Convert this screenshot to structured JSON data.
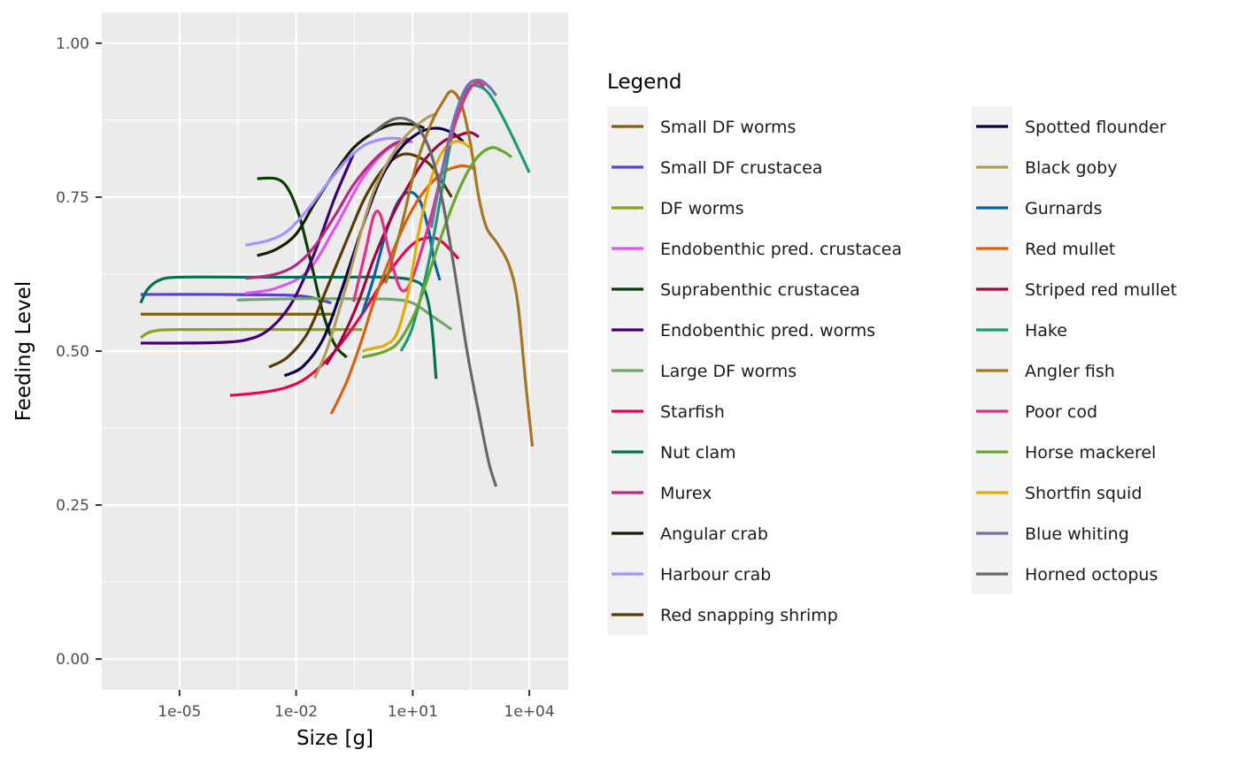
{
  "chart_data": {
    "type": "line",
    "title": "",
    "xlabel": "Size [g]",
    "ylabel": "Feeding Level",
    "x_scale": "log10",
    "xlim": [
      1e-07,
      100000.0
    ],
    "ylim": [
      -0.05,
      1.05
    ],
    "x_ticks": [
      1e-05,
      0.01,
      10,
      10000
    ],
    "x_tick_labels": [
      "1e-05",
      "1e-02",
      "1e+01",
      "1e+04"
    ],
    "y_ticks": [
      0,
      0.25,
      0.5,
      0.75,
      1
    ],
    "y_tick_labels": [
      "0.00",
      "0.25",
      "0.50",
      "0.75",
      "1.00"
    ],
    "grid": true,
    "legend": {
      "title": "Legend",
      "position": "right",
      "columns": 2
    },
    "series": [
      {
        "name": "Small DF worms",
        "color": "#7f5f0a",
        "points": [
          [
            1e-06,
            0.56
          ],
          [
            0.001,
            0.56
          ],
          [
            0.1,
            0.56
          ]
        ]
      },
      {
        "name": "Small DF crustacea",
        "color": "#5e3ddc",
        "points": [
          [
            1e-06,
            0.592
          ],
          [
            0.0001,
            0.592
          ],
          [
            0.005,
            0.591
          ],
          [
            0.02,
            0.588
          ],
          [
            0.05,
            0.582
          ],
          [
            0.08,
            0.578
          ]
        ]
      },
      {
        "name": "DF worms",
        "color": "#86a41a",
        "points": [
          [
            1e-06,
            0.522
          ],
          [
            2e-06,
            0.532
          ],
          [
            1e-05,
            0.535
          ],
          [
            0.01,
            0.535
          ],
          [
            0.5,
            0.535
          ]
        ]
      },
      {
        "name": "Endobenthic pred. crustacea",
        "color": "#e154ed",
        "points": [
          [
            0.0005,
            0.594
          ],
          [
            0.003,
            0.602
          ],
          [
            0.02,
            0.63
          ],
          [
            0.1,
            0.7
          ],
          [
            0.5,
            0.78
          ],
          [
            2,
            0.825
          ],
          [
            5,
            0.838
          ],
          [
            10,
            0.84
          ]
        ]
      },
      {
        "name": "Suprabenthic crustacea",
        "color": "#0a3d06",
        "points": [
          [
            0.001,
            0.78
          ],
          [
            0.003,
            0.78
          ],
          [
            0.006,
            0.765
          ],
          [
            0.012,
            0.72
          ],
          [
            0.025,
            0.64
          ],
          [
            0.05,
            0.56
          ],
          [
            0.1,
            0.51
          ],
          [
            0.2,
            0.49
          ]
        ]
      },
      {
        "name": "Endobenthic pred. worms",
        "color": "#420072",
        "points": [
          [
            1e-06,
            0.513
          ],
          [
            1e-05,
            0.513
          ],
          [
            0.0001,
            0.514
          ],
          [
            0.0005,
            0.518
          ],
          [
            0.002,
            0.535
          ],
          [
            0.008,
            0.58
          ],
          [
            0.03,
            0.66
          ],
          [
            0.1,
            0.75
          ],
          [
            0.3,
            0.82
          ]
        ]
      },
      {
        "name": "Large DF worms",
        "color": "#6da86d",
        "points": [
          [
            0.0003,
            0.583
          ],
          [
            0.01,
            0.585
          ],
          [
            0.3,
            0.585
          ],
          [
            3,
            0.584
          ],
          [
            10,
            0.578
          ],
          [
            30,
            0.558
          ],
          [
            100,
            0.535
          ]
        ]
      },
      {
        "name": "Starfish",
        "color": "#e5064b",
        "points": [
          [
            0.0002,
            0.428
          ],
          [
            0.001,
            0.432
          ],
          [
            0.005,
            0.44
          ],
          [
            0.02,
            0.458
          ],
          [
            0.1,
            0.5
          ],
          [
            0.5,
            0.56
          ],
          [
            2,
            0.62
          ],
          [
            8,
            0.668
          ],
          [
            20,
            0.683
          ],
          [
            50,
            0.68
          ],
          [
            150,
            0.65
          ]
        ]
      },
      {
        "name": "Nut clam",
        "color": "#007153",
        "points": [
          [
            1e-06,
            0.578
          ],
          [
            1.5e-06,
            0.6
          ],
          [
            3e-06,
            0.615
          ],
          [
            1e-05,
            0.62
          ],
          [
            0.001,
            0.62
          ],
          [
            0.1,
            0.62
          ],
          [
            2,
            0.62
          ],
          [
            10,
            0.615
          ],
          [
            20,
            0.6
          ],
          [
            30,
            0.55
          ],
          [
            40,
            0.455
          ]
        ]
      },
      {
        "name": "Murex",
        "color": "#b72b7e",
        "points": [
          [
            0.0005,
            0.618
          ],
          [
            0.003,
            0.625
          ],
          [
            0.01,
            0.64
          ],
          [
            0.03,
            0.67
          ],
          [
            0.1,
            0.72
          ],
          [
            0.3,
            0.77
          ],
          [
            1,
            0.81
          ],
          [
            3,
            0.835
          ],
          [
            8,
            0.845
          ]
        ]
      },
      {
        "name": "Angular crab",
        "color": "#121f02",
        "points": [
          [
            0.001,
            0.655
          ],
          [
            0.003,
            0.665
          ],
          [
            0.01,
            0.69
          ],
          [
            0.03,
            0.74
          ],
          [
            0.1,
            0.79
          ],
          [
            0.3,
            0.83
          ],
          [
            1,
            0.855
          ],
          [
            3,
            0.868
          ],
          [
            10,
            0.868
          ],
          [
            20,
            0.862
          ]
        ]
      },
      {
        "name": "Harbour crab",
        "color": "#a491fe",
        "points": [
          [
            0.0005,
            0.672
          ],
          [
            0.002,
            0.68
          ],
          [
            0.006,
            0.695
          ],
          [
            0.02,
            0.73
          ],
          [
            0.06,
            0.77
          ],
          [
            0.2,
            0.81
          ],
          [
            0.6,
            0.835
          ],
          [
            2,
            0.845
          ],
          [
            5,
            0.845
          ]
        ]
      },
      {
        "name": "Red snapping shrimp",
        "color": "#563b04",
        "points": [
          [
            0.002,
            0.474
          ],
          [
            0.006,
            0.49
          ],
          [
            0.02,
            0.53
          ],
          [
            0.06,
            0.6
          ],
          [
            0.2,
            0.68
          ],
          [
            0.6,
            0.75
          ],
          [
            2,
            0.8
          ],
          [
            6,
            0.82
          ],
          [
            20,
            0.81
          ],
          [
            40,
            0.79
          ],
          [
            100,
            0.75
          ]
        ]
      },
      {
        "name": "Spotted flounder",
        "color": "#070044",
        "points": [
          [
            0.005,
            0.46
          ],
          [
            0.015,
            0.475
          ],
          [
            0.05,
            0.52
          ],
          [
            0.15,
            0.6
          ],
          [
            0.5,
            0.7
          ],
          [
            1.5,
            0.78
          ],
          [
            5,
            0.83
          ],
          [
            15,
            0.855
          ],
          [
            40,
            0.862
          ],
          [
            100,
            0.855
          ],
          [
            200,
            0.84
          ]
        ]
      },
      {
        "name": "Black goby",
        "color": "#b39b5b",
        "points": [
          [
            0.03,
            0.456
          ],
          [
            0.06,
            0.5
          ],
          [
            0.12,
            0.56
          ],
          [
            0.25,
            0.63
          ],
          [
            0.5,
            0.7
          ],
          [
            1,
            0.76
          ],
          [
            2,
            0.8
          ],
          [
            5,
            0.84
          ],
          [
            12,
            0.865
          ],
          [
            25,
            0.88
          ],
          [
            40,
            0.885
          ]
        ]
      },
      {
        "name": "Gurnards",
        "color": "#0164a5",
        "points": [
          [
            0.5,
            0.56
          ],
          [
            1,
            0.62
          ],
          [
            2,
            0.69
          ],
          [
            4,
            0.74
          ],
          [
            8,
            0.758
          ],
          [
            15,
            0.745
          ],
          [
            25,
            0.7
          ],
          [
            35,
            0.65
          ],
          [
            50,
            0.615
          ]
        ]
      },
      {
        "name": "Red mullet",
        "color": "#da600c",
        "points": [
          [
            0.08,
            0.398
          ],
          [
            0.2,
            0.45
          ],
          [
            0.5,
            0.52
          ],
          [
            1,
            0.58
          ],
          [
            3,
            0.66
          ],
          [
            8,
            0.72
          ],
          [
            20,
            0.76
          ],
          [
            60,
            0.79
          ],
          [
            150,
            0.8
          ],
          [
            250,
            0.8
          ],
          [
            400,
            0.795
          ]
        ]
      },
      {
        "name": "Striped red mullet",
        "color": "#a1053e",
        "points": [
          [
            0.06,
            0.478
          ],
          [
            0.15,
            0.52
          ],
          [
            0.4,
            0.58
          ],
          [
            1,
            0.65
          ],
          [
            3,
            0.72
          ],
          [
            8,
            0.77
          ],
          [
            20,
            0.81
          ],
          [
            60,
            0.84
          ],
          [
            150,
            0.85
          ],
          [
            300,
            0.855
          ],
          [
            500,
            0.848
          ]
        ]
      },
      {
        "name": "Hake",
        "color": "#1e9a79",
        "points": [
          [
            5,
            0.5
          ],
          [
            10,
            0.54
          ],
          [
            25,
            0.64
          ],
          [
            60,
            0.77
          ],
          [
            120,
            0.87
          ],
          [
            250,
            0.925
          ],
          [
            500,
            0.93
          ],
          [
            1000,
            0.915
          ],
          [
            2500,
            0.87
          ],
          [
            6000,
            0.82
          ],
          [
            10000,
            0.79
          ]
        ]
      },
      {
        "name": "Angler fish",
        "color": "#a77421",
        "points": [
          [
            2,
            0.61
          ],
          [
            5,
            0.7
          ],
          [
            12,
            0.8
          ],
          [
            30,
            0.87
          ],
          [
            60,
            0.905
          ],
          [
            100,
            0.922
          ],
          [
            180,
            0.9
          ],
          [
            300,
            0.84
          ],
          [
            500,
            0.75
          ],
          [
            800,
            0.7
          ],
          [
            1500,
            0.675
          ],
          [
            3000,
            0.64
          ],
          [
            5000,
            0.58
          ],
          [
            8000,
            0.45
          ],
          [
            12000,
            0.345
          ]
        ]
      },
      {
        "name": "Poor cod",
        "color": "#e1317f",
        "points": [
          [
            0.3,
            0.58
          ],
          [
            0.6,
            0.66
          ],
          [
            1,
            0.72
          ],
          [
            1.5,
            0.72
          ],
          [
            2.5,
            0.66
          ],
          [
            5,
            0.6
          ],
          [
            10,
            0.62
          ],
          [
            30,
            0.72
          ],
          [
            80,
            0.83
          ],
          [
            200,
            0.905
          ],
          [
            400,
            0.935
          ],
          [
            700,
            0.93
          ]
        ]
      },
      {
        "name": "Horse mackerel",
        "color": "#6aa62a",
        "points": [
          [
            0.5,
            0.49
          ],
          [
            2,
            0.5
          ],
          [
            5,
            0.52
          ],
          [
            15,
            0.58
          ],
          [
            50,
            0.68
          ],
          [
            150,
            0.76
          ],
          [
            400,
            0.81
          ],
          [
            1000,
            0.83
          ],
          [
            2000,
            0.825
          ],
          [
            3500,
            0.815
          ]
        ]
      },
      {
        "name": "Shortfin squid",
        "color": "#e6ab02",
        "points": [
          [
            0.5,
            0.5
          ],
          [
            1,
            0.505
          ],
          [
            2,
            0.51
          ],
          [
            4,
            0.53
          ],
          [
            8,
            0.6
          ],
          [
            15,
            0.7
          ],
          [
            30,
            0.78
          ],
          [
            60,
            0.825
          ],
          [
            120,
            0.84
          ],
          [
            200,
            0.838
          ],
          [
            300,
            0.83
          ]
        ]
      },
      {
        "name": "Blue whiting",
        "color": "#756fb2",
        "points": [
          [
            30,
            0.7
          ],
          [
            60,
            0.8
          ],
          [
            120,
            0.88
          ],
          [
            250,
            0.93
          ],
          [
            500,
            0.94
          ],
          [
            900,
            0.93
          ],
          [
            1400,
            0.915
          ]
        ]
      },
      {
        "name": "Horned octopus",
        "color": "#676767",
        "points": [
          [
            0.8,
            0.85
          ],
          [
            2,
            0.87
          ],
          [
            4,
            0.878
          ],
          [
            8,
            0.875
          ],
          [
            15,
            0.86
          ],
          [
            30,
            0.82
          ],
          [
            60,
            0.74
          ],
          [
            120,
            0.63
          ],
          [
            250,
            0.5
          ],
          [
            500,
            0.4
          ],
          [
            900,
            0.32
          ],
          [
            1400,
            0.28
          ]
        ]
      }
    ]
  }
}
